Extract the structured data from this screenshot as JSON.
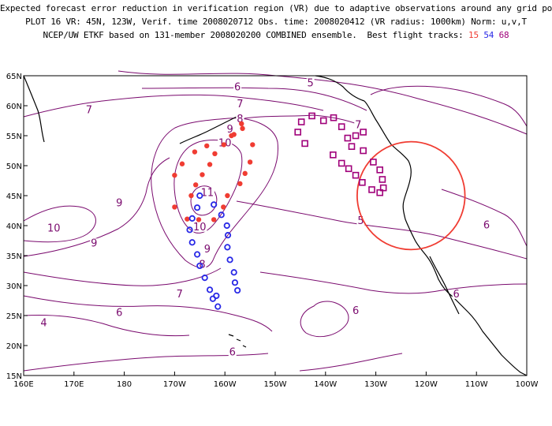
{
  "title": {
    "line1": "Expected forecast error reduction in verification region (VR) due to adaptive observations around any grid point.",
    "line2": "PLOT 16 VR: 45N, 123W, Verif. time 2008020712 Obs. time: 2008020412 (VR radius: 1000km) Norm: u,v,T",
    "line3_prefix": "NCEP/UW ETKF based on 131-member 2008020200 COMBINED ensemble.  Best flight tracks:",
    "track_a": "15",
    "track_b": "54",
    "track_c": "68"
  },
  "axes": {
    "lon_labels": [
      "160E",
      "170E",
      "180",
      "170W",
      "160W",
      "150W",
      "140W",
      "130W",
      "120W",
      "110W",
      "100W"
    ],
    "lat_labels": [
      "65N",
      "60N",
      "55N",
      "50N",
      "45N",
      "40N",
      "35N",
      "30N",
      "25N",
      "20N",
      "15N"
    ],
    "lon_range": [
      160,
      260
    ],
    "lat_range": [
      15,
      65
    ]
  },
  "colors": {
    "contour": "#7a0a6e",
    "coast": "#000000",
    "track_a": "#f03c32",
    "track_b": "#2828e6",
    "track_c": "#a0007a",
    "vr_circle": "#f03c32"
  },
  "verification_region": {
    "lat": 45,
    "lon": 237,
    "radius_km": 1000
  },
  "contour_labels": [
    {
      "text": "6",
      "lon": 202.5,
      "lat": 62.8
    },
    {
      "text": "5",
      "lon": 217.0,
      "lat": 63.5
    },
    {
      "text": "7",
      "lon": 173.0,
      "lat": 59.0
    },
    {
      "text": "7",
      "lon": 203.0,
      "lat": 60.0
    },
    {
      "text": "8",
      "lon": 203.0,
      "lat": 57.5
    },
    {
      "text": "9",
      "lon": 201.0,
      "lat": 55.8
    },
    {
      "text": "10",
      "lon": 200.0,
      "lat": 53.5
    },
    {
      "text": "7",
      "lon": 226.5,
      "lat": 56.5
    },
    {
      "text": "11",
      "lon": 196.5,
      "lat": 45.2
    },
    {
      "text": "9",
      "lon": 179.0,
      "lat": 43.5
    },
    {
      "text": "10",
      "lon": 166.0,
      "lat": 39.3
    },
    {
      "text": "10",
      "lon": 195.0,
      "lat": 39.5
    },
    {
      "text": "5",
      "lon": 227.0,
      "lat": 40.5
    },
    {
      "text": "9",
      "lon": 174.0,
      "lat": 36.8
    },
    {
      "text": "9",
      "lon": 196.5,
      "lat": 35.8
    },
    {
      "text": "8",
      "lon": 195.5,
      "lat": 33.2
    },
    {
      "text": "7",
      "lon": 191.0,
      "lat": 28.3
    },
    {
      "text": "6",
      "lon": 179.0,
      "lat": 25.2
    },
    {
      "text": "4",
      "lon": 164.0,
      "lat": 23.5
    },
    {
      "text": "6",
      "lon": 201.5,
      "lat": 18.6
    },
    {
      "text": "6",
      "lon": 226.0,
      "lat": 25.5
    },
    {
      "text": "6",
      "lon": 246.0,
      "lat": 28.3
    },
    {
      "text": "6",
      "lon": 252.0,
      "lat": 39.8
    }
  ],
  "track_15": [
    [
      57.0,
      203.3
    ],
    [
      55.2,
      201.8
    ],
    [
      53.5,
      199.8
    ],
    [
      52.0,
      198.0
    ],
    [
      50.2,
      197.0
    ],
    [
      48.5,
      195.5
    ],
    [
      46.8,
      194.2
    ],
    [
      45.0,
      193.3
    ],
    [
      41.1,
      192.5
    ],
    [
      43.1,
      190.0
    ],
    [
      48.4,
      190.0
    ],
    [
      50.3,
      191.5
    ],
    [
      52.3,
      194.0
    ],
    [
      53.3,
      196.4
    ],
    [
      55.0,
      201.3
    ],
    [
      56.2,
      203.5
    ],
    [
      53.5,
      205.5
    ],
    [
      50.6,
      205.0
    ],
    [
      48.7,
      204.0
    ],
    [
      47.0,
      203.0
    ],
    [
      45.0,
      200.5
    ],
    [
      43.1,
      199.7
    ],
    [
      41.0,
      197.8
    ],
    [
      41.0,
      194.8
    ]
  ],
  "track_54": [
    [
      45.0,
      195.0
    ],
    [
      43.0,
      194.5
    ],
    [
      41.2,
      193.5
    ],
    [
      39.3,
      193.0
    ],
    [
      37.2,
      193.5
    ],
    [
      35.2,
      194.5
    ],
    [
      33.3,
      195.0
    ],
    [
      31.3,
      196.0
    ],
    [
      29.3,
      197.0
    ],
    [
      28.3,
      198.3
    ],
    [
      26.5,
      198.6
    ],
    [
      27.8,
      197.6
    ],
    [
      29.2,
      202.5
    ],
    [
      30.5,
      202.0
    ],
    [
      32.2,
      201.8
    ],
    [
      34.3,
      201.0
    ],
    [
      36.4,
      200.5
    ],
    [
      38.4,
      200.6
    ],
    [
      40.0,
      200.4
    ],
    [
      41.8,
      199.3
    ],
    [
      43.5,
      197.8
    ]
  ],
  "track_68": [
    [
      57.3,
      215.2
    ],
    [
      55.6,
      214.5
    ],
    [
      53.7,
      215.9
    ],
    [
      58.3,
      217.3
    ],
    [
      57.5,
      219.6
    ],
    [
      58.0,
      221.6
    ],
    [
      56.5,
      223.2
    ],
    [
      51.8,
      221.5
    ],
    [
      50.4,
      223.2
    ],
    [
      49.5,
      224.6
    ],
    [
      48.4,
      226.0
    ],
    [
      47.2,
      227.3
    ],
    [
      46.0,
      229.2
    ],
    [
      45.5,
      230.8
    ],
    [
      46.3,
      231.5
    ],
    [
      47.7,
      231.3
    ],
    [
      49.3,
      230.8
    ],
    [
      50.6,
      229.5
    ],
    [
      52.5,
      227.5
    ],
    [
      53.2,
      225.2
    ],
    [
      54.6,
      224.4
    ],
    [
      55.0,
      226.0
    ],
    [
      55.6,
      227.5
    ]
  ]
}
